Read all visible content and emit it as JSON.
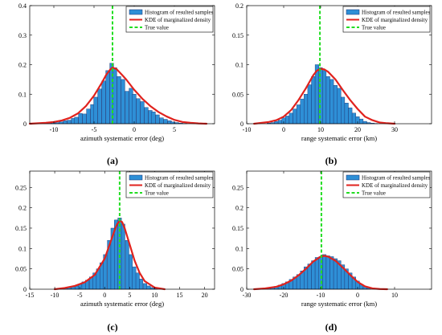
{
  "figure": {
    "panel_labels": [
      "(a)",
      "(b)",
      "(c)",
      "(d)"
    ]
  },
  "legend": {
    "histogram": "Histogram of resulted samples",
    "kde": "KDE of marginalized density",
    "true_value": "True value"
  },
  "colors": {
    "bar_fill": "#2e8fd6",
    "bar_stroke": "#1a2f6e",
    "kde": "#e0221d",
    "true_value": "#22dd22"
  },
  "chart_data": [
    {
      "type": "bar",
      "panel": "(a)",
      "xlabel": "azimuth systematic error (deg)",
      "ylabel": "",
      "xlim": [
        -13,
        10
      ],
      "ylim": [
        0,
        0.4
      ],
      "xticks": [
        -10,
        -5,
        0,
        5
      ],
      "yticks": [
        0,
        0.1,
        0.2,
        0.3,
        0.4
      ],
      "ytick_labels": [
        "0",
        "0.1",
        "0.2",
        "0.3",
        "0.4"
      ],
      "true_value": -2.7,
      "bin_width": 0.48,
      "bins_x": [
        -11.0,
        -10.5,
        -10.0,
        -9.6,
        -9.1,
        -8.6,
        -8.1,
        -7.6,
        -7.2,
        -6.7,
        -6.2,
        -5.7,
        -5.2,
        -4.8,
        -4.3,
        -3.8,
        -3.3,
        -2.8,
        -2.4,
        -1.9,
        -1.4,
        -0.9,
        -0.4,
        0.0,
        0.5,
        1.0,
        1.5,
        2.0,
        2.4,
        2.9,
        3.4,
        3.9,
        4.4,
        4.8,
        5.3,
        5.8,
        6.3
      ],
      "bins_y": [
        0.001,
        0.002,
        0.004,
        0.004,
        0.006,
        0.01,
        0.012,
        0.018,
        0.022,
        0.035,
        0.033,
        0.05,
        0.065,
        0.09,
        0.118,
        0.145,
        0.18,
        0.205,
        0.19,
        0.16,
        0.15,
        0.11,
        0.12,
        0.1,
        0.085,
        0.075,
        0.055,
        0.045,
        0.04,
        0.03,
        0.02,
        0.015,
        0.01,
        0.006,
        0.004,
        0.002,
        0.001
      ],
      "kde_x": [
        -13,
        -11,
        -10,
        -9,
        -8,
        -7,
        -6,
        -5,
        -4,
        -3.5,
        -3,
        -2.7,
        -2.2,
        -1.5,
        -1,
        0,
        1,
        2,
        3,
        4,
        5,
        6,
        7,
        8,
        9
      ],
      "kde_y": [
        0,
        0.003,
        0.006,
        0.011,
        0.02,
        0.035,
        0.06,
        0.095,
        0.14,
        0.165,
        0.183,
        0.19,
        0.185,
        0.165,
        0.15,
        0.115,
        0.085,
        0.06,
        0.04,
        0.025,
        0.013,
        0.006,
        0.003,
        0.001,
        0
      ]
    },
    {
      "type": "bar",
      "panel": "(b)",
      "xlabel": "range systematic error (km)",
      "ylabel": "",
      "xlim": [
        -10,
        40
      ],
      "ylim": [
        0,
        0.2
      ],
      "xticks": [
        -10,
        0,
        10,
        20,
        30
      ],
      "yticks": [
        0,
        0.05,
        0.1,
        0.15,
        0.2
      ],
      "ytick_labels": [
        "0",
        "0.05",
        "0.1",
        "0.15",
        "0.2"
      ],
      "true_value": 9.8,
      "bin_width": 1.0,
      "bins_x": [
        -4,
        -3,
        -2,
        -1,
        0,
        1,
        2,
        3,
        4,
        5,
        6,
        7,
        8,
        9,
        10,
        11,
        12,
        13,
        14,
        15,
        16,
        17,
        18,
        19,
        20,
        21,
        22,
        23,
        24,
        25
      ],
      "bins_y": [
        0.001,
        0.002,
        0.004,
        0.006,
        0.01,
        0.013,
        0.018,
        0.025,
        0.032,
        0.042,
        0.05,
        0.066,
        0.08,
        0.1,
        0.095,
        0.09,
        0.08,
        0.075,
        0.065,
        0.06,
        0.045,
        0.035,
        0.027,
        0.018,
        0.012,
        0.008,
        0.004,
        0.002,
        0.001,
        0.0005
      ],
      "kde_x": [
        -8,
        -4,
        -2,
        0,
        2,
        4,
        6,
        8,
        9,
        10,
        11,
        12,
        14,
        16,
        18,
        20,
        22,
        24,
        26,
        28,
        30
      ],
      "kde_y": [
        0,
        0.003,
        0.006,
        0.012,
        0.023,
        0.04,
        0.06,
        0.082,
        0.09,
        0.093,
        0.092,
        0.088,
        0.075,
        0.057,
        0.04,
        0.025,
        0.012,
        0.006,
        0.002,
        0.0008,
        0
      ]
    },
    {
      "type": "bar",
      "panel": "(c)",
      "xlabel": "azimuth systematic error (deg)",
      "ylabel": "",
      "xlim": [
        -15,
        22
      ],
      "ylim": [
        0,
        0.29
      ],
      "xticks": [
        -15,
        -10,
        -5,
        0,
        5,
        10,
        15,
        20
      ],
      "yticks": [
        0,
        0.05,
        0.1,
        0.15,
        0.2,
        0.25
      ],
      "ytick_labels": [
        "0",
        "0.05",
        "0.1",
        "0.15",
        "0.2",
        "0.25"
      ],
      "true_value": 3.0,
      "bin_width": 0.72,
      "bins_x": [
        -8.5,
        -7.8,
        -7.1,
        -6.3,
        -5.6,
        -4.9,
        -4.2,
        -3.5,
        -2.7,
        -2.0,
        -1.3,
        -0.6,
        0.1,
        0.9,
        1.6,
        2.3,
        3.0,
        3.7,
        4.5,
        5.2,
        5.9,
        6.6,
        7.3,
        8.1,
        8.8,
        9.5,
        10.2
      ],
      "bins_y": [
        0.001,
        0.003,
        0.004,
        0.006,
        0.008,
        0.012,
        0.018,
        0.022,
        0.03,
        0.04,
        0.05,
        0.065,
        0.085,
        0.12,
        0.15,
        0.17,
        0.175,
        0.16,
        0.12,
        0.085,
        0.055,
        0.04,
        0.025,
        0.014,
        0.008,
        0.004,
        0.002
      ],
      "kde_x": [
        -10,
        -8,
        -6,
        -4,
        -2,
        0,
        1,
        2,
        2.5,
        3,
        3.5,
        4,
        5,
        6,
        7,
        8,
        10,
        12
      ],
      "kde_y": [
        0,
        0.003,
        0.008,
        0.017,
        0.035,
        0.075,
        0.11,
        0.145,
        0.16,
        0.168,
        0.165,
        0.15,
        0.11,
        0.07,
        0.04,
        0.02,
        0.004,
        0
      ]
    },
    {
      "type": "bar",
      "panel": "(d)",
      "xlabel": "range systematic error (km)",
      "ylabel": "",
      "xlim": [
        -30,
        20
      ],
      "ylim": [
        0,
        0.29
      ],
      "xticks": [
        -30,
        -20,
        -10,
        0,
        10
      ],
      "yticks": [
        0,
        0.05,
        0.1,
        0.15,
        0.2,
        0.25
      ],
      "ytick_labels": [
        "0",
        "0.05",
        "0.1",
        "0.15",
        "0.2",
        "0.25"
      ],
      "true_value": -9.8,
      "bin_width": 1.0,
      "bins_x": [
        -26,
        -25,
        -24,
        -23,
        -22,
        -21,
        -20,
        -19,
        -18,
        -17,
        -16,
        -15,
        -14,
        -13,
        -12,
        -11,
        -10,
        -9,
        -8,
        -7,
        -6,
        -5,
        -4,
        -3,
        -2,
        -1,
        0,
        1,
        2,
        3
      ],
      "bins_y": [
        0.001,
        0.002,
        0.003,
        0.005,
        0.007,
        0.01,
        0.014,
        0.018,
        0.024,
        0.03,
        0.036,
        0.045,
        0.055,
        0.062,
        0.07,
        0.078,
        0.08,
        0.085,
        0.082,
        0.08,
        0.075,
        0.07,
        0.06,
        0.05,
        0.04,
        0.03,
        0.02,
        0.012,
        0.006,
        0.003
      ],
      "kde_x": [
        -28,
        -25,
        -22,
        -20,
        -18,
        -16,
        -14,
        -12,
        -10,
        -9,
        -8,
        -6,
        -4,
        -2,
        0,
        2,
        4,
        6,
        8
      ],
      "kde_y": [
        0,
        0.002,
        0.006,
        0.012,
        0.021,
        0.034,
        0.05,
        0.068,
        0.08,
        0.082,
        0.08,
        0.07,
        0.053,
        0.035,
        0.018,
        0.007,
        0.002,
        0.0005,
        0
      ]
    }
  ]
}
